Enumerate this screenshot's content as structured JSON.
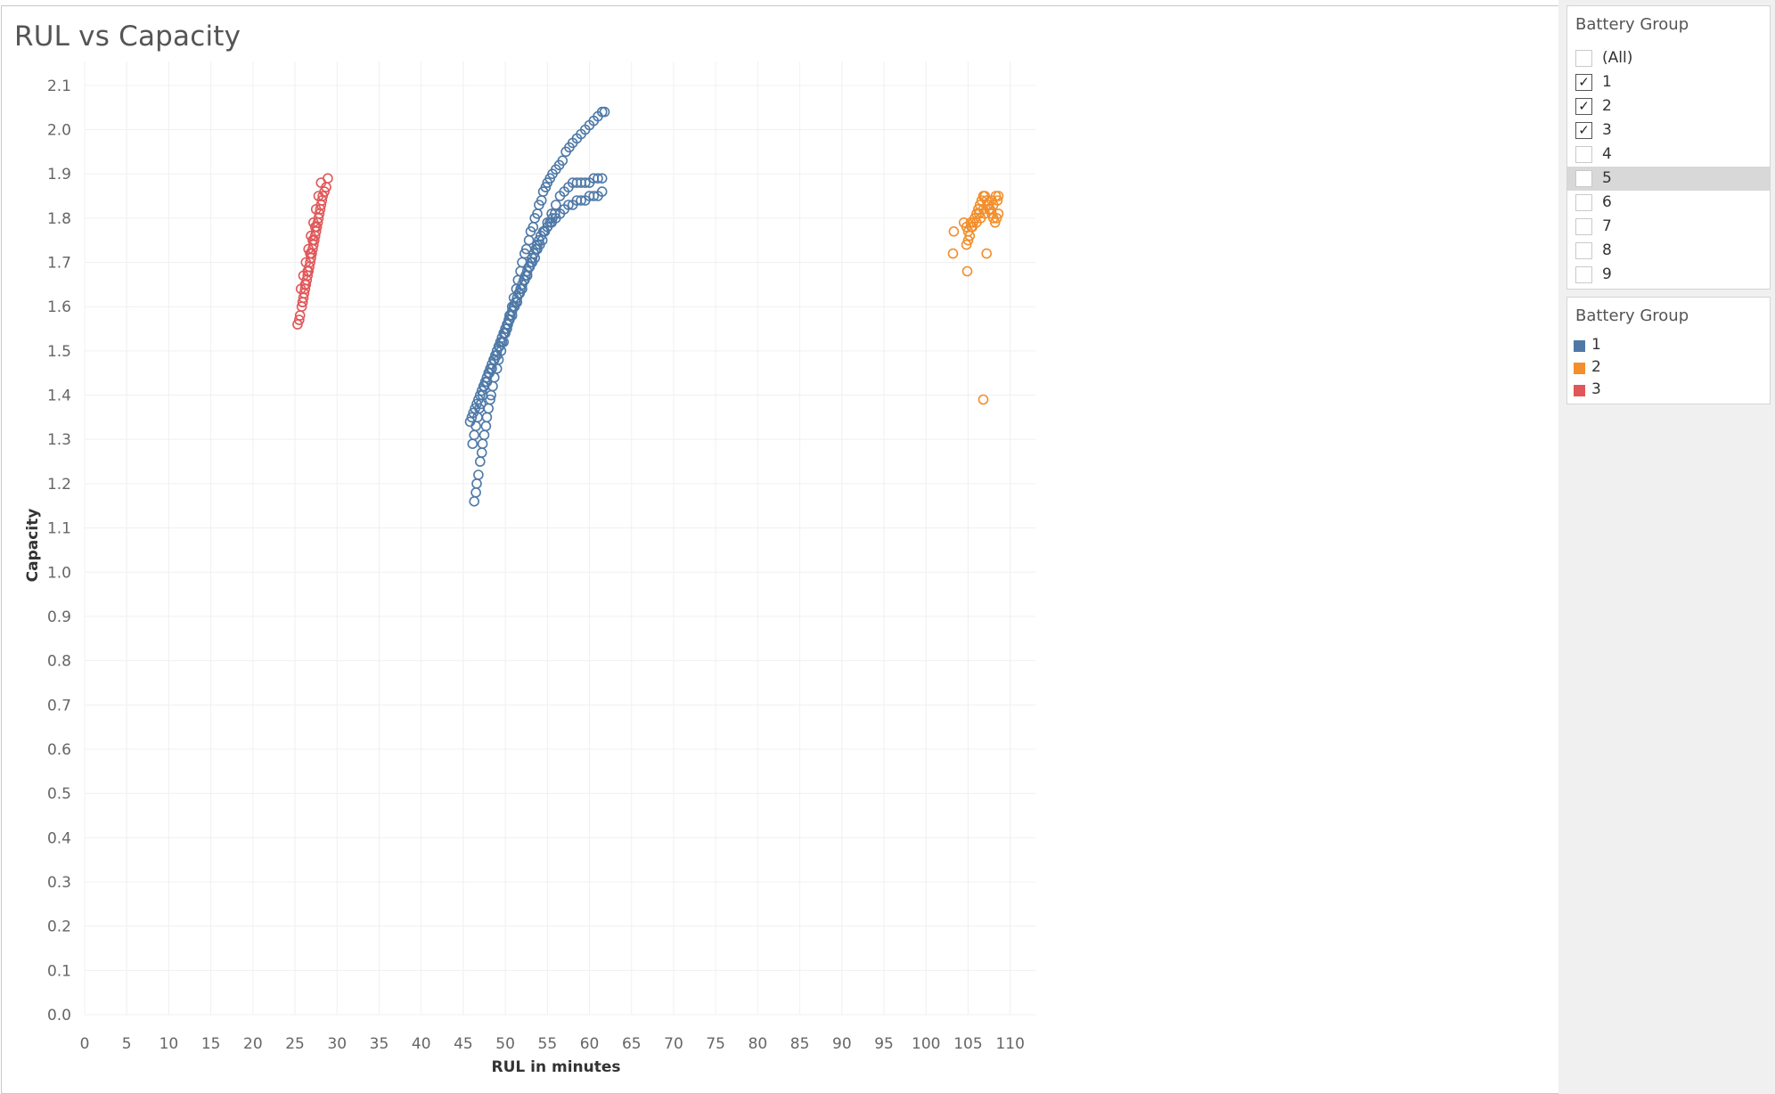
{
  "worksheet": {
    "title": "RUL vs Capacity"
  },
  "filter_card": {
    "title": "Battery Group",
    "items": [
      {
        "label": "(All)",
        "checked": false
      },
      {
        "label": "1",
        "checked": true
      },
      {
        "label": "2",
        "checked": true
      },
      {
        "label": "3",
        "checked": true
      },
      {
        "label": "4",
        "checked": false
      },
      {
        "label": "5",
        "checked": false
      },
      {
        "label": "6",
        "checked": false
      },
      {
        "label": "7",
        "checked": false
      },
      {
        "label": "8",
        "checked": false
      },
      {
        "label": "9",
        "checked": false
      }
    ],
    "hovered_item": "5"
  },
  "legend_card": {
    "title": "Battery Group",
    "items": [
      {
        "label": "1",
        "color": "#4e79a7"
      },
      {
        "label": "2",
        "color": "#f28e2b"
      },
      {
        "label": "3",
        "color": "#e15759"
      }
    ]
  },
  "chart_data": {
    "type": "scatter",
    "title": "RUL vs Capacity",
    "xlabel": "RUL in minutes",
    "ylabel": "Capacity",
    "xlim": [
      0,
      113
    ],
    "ylim": [
      0,
      2.15
    ],
    "x_ticks": [
      0,
      5,
      10,
      15,
      20,
      25,
      30,
      35,
      40,
      45,
      50,
      55,
      60,
      65,
      70,
      75,
      80,
      85,
      90,
      95,
      100,
      105,
      110
    ],
    "y_ticks": [
      0.0,
      0.1,
      0.2,
      0.3,
      0.4,
      0.5,
      0.6,
      0.7,
      0.8,
      0.9,
      1.0,
      1.1,
      1.2,
      1.3,
      1.4,
      1.5,
      1.6,
      1.7,
      1.8,
      1.9,
      2.0,
      2.1
    ],
    "grid": true,
    "marker": "hollow-circle",
    "series": [
      {
        "name": "1",
        "color": "#4e79a7",
        "x": [
          46.3,
          46.5,
          46.6,
          46.8,
          47.0,
          47.2,
          47.3,
          47.5,
          47.7,
          47.8,
          48.0,
          48.2,
          48.3,
          48.5,
          48.7,
          49.0,
          49.2,
          49.5,
          49.8,
          50.0,
          50.3,
          50.5,
          50.8,
          51.0,
          51.3,
          51.5,
          51.8,
          52.0,
          52.3,
          52.5,
          52.8,
          53.0,
          53.3,
          53.5,
          53.8,
          54.0,
          54.3,
          54.5,
          54.8,
          55.0,
          55.3,
          55.6,
          56.0,
          56.4,
          56.8,
          57.2,
          57.6,
          58.0,
          58.5,
          59.0,
          59.5,
          60.0,
          60.5,
          61.0,
          61.5,
          61.8,
          46.0,
          46.4,
          46.8,
          47.2,
          47.6,
          48.0,
          48.4,
          48.8,
          49.2,
          49.6,
          50.0,
          50.4,
          50.8,
          51.2,
          51.6,
          52.0,
          52.4,
          52.8,
          53.2,
          53.6,
          54.0,
          54.5,
          55.0,
          55.5,
          56.0,
          56.5,
          57.0,
          57.5,
          58.0,
          58.5,
          59.0,
          59.5,
          60.0,
          60.5,
          61.0,
          61.5,
          45.8,
          46.2,
          46.6,
          47.0,
          47.4,
          47.8,
          48.2,
          48.6,
          49.0,
          49.4,
          49.8,
          50.2,
          50.6,
          51.0,
          51.4,
          51.8,
          52.2,
          52.6,
          53.0,
          53.4,
          53.8,
          54.2,
          54.6,
          55.0,
          55.5,
          56.0,
          56.5,
          57.0,
          57.5,
          58.0,
          58.5,
          59.0,
          59.5,
          60.0,
          60.5,
          61.0,
          61.5,
          46.1,
          46.3,
          46.5,
          46.7,
          46.9,
          47.1,
          47.3,
          47.5,
          47.8,
          48.1,
          48.4,
          48.7,
          49.0,
          49.3,
          49.6,
          49.9,
          50.2,
          50.5,
          50.8,
          51.1,
          51.4,
          51.7,
          52.0,
          52.3,
          52.6,
          52.9,
          53.2,
          53.5,
          53.8,
          54.1,
          54.4,
          54.7,
          55.0,
          55.3,
          55.6,
          55.9
        ],
        "y": [
          1.16,
          1.18,
          1.2,
          1.22,
          1.25,
          1.27,
          1.29,
          1.31,
          1.33,
          1.35,
          1.37,
          1.39,
          1.4,
          1.42,
          1.44,
          1.46,
          1.48,
          1.5,
          1.52,
          1.54,
          1.56,
          1.58,
          1.6,
          1.62,
          1.64,
          1.66,
          1.68,
          1.7,
          1.72,
          1.73,
          1.75,
          1.77,
          1.78,
          1.8,
          1.81,
          1.83,
          1.84,
          1.86,
          1.87,
          1.88,
          1.89,
          1.9,
          1.91,
          1.92,
          1.93,
          1.95,
          1.96,
          1.97,
          1.98,
          1.99,
          2.0,
          2.01,
          2.02,
          2.03,
          2.04,
          2.04,
          1.35,
          1.37,
          1.39,
          1.41,
          1.43,
          1.45,
          1.47,
          1.49,
          1.51,
          1.53,
          1.55,
          1.57,
          1.59,
          1.61,
          1.63,
          1.65,
          1.67,
          1.69,
          1.71,
          1.73,
          1.75,
          1.77,
          1.79,
          1.81,
          1.83,
          1.85,
          1.86,
          1.87,
          1.88,
          1.88,
          1.88,
          1.88,
          1.88,
          1.89,
          1.89,
          1.89,
          1.34,
          1.36,
          1.38,
          1.4,
          1.42,
          1.44,
          1.46,
          1.48,
          1.5,
          1.52,
          1.54,
          1.56,
          1.58,
          1.6,
          1.62,
          1.64,
          1.66,
          1.68,
          1.7,
          1.72,
          1.74,
          1.76,
          1.77,
          1.78,
          1.79,
          1.8,
          1.81,
          1.82,
          1.83,
          1.83,
          1.84,
          1.84,
          1.84,
          1.85,
          1.85,
          1.85,
          1.86,
          1.29,
          1.31,
          1.33,
          1.35,
          1.37,
          1.38,
          1.4,
          1.42,
          1.43,
          1.45,
          1.46,
          1.48,
          1.49,
          1.51,
          1.52,
          1.54,
          1.55,
          1.57,
          1.58,
          1.6,
          1.61,
          1.63,
          1.64,
          1.66,
          1.67,
          1.69,
          1.7,
          1.71,
          1.73,
          1.74,
          1.75,
          1.77,
          1.78,
          1.79,
          1.8,
          1.81
        ]
      },
      {
        "name": "2",
        "color": "#f28e2b",
        "x": [
          103.2,
          103.3,
          104.5,
          104.8,
          105.0,
          105.2,
          105.4,
          105.6,
          105.8,
          106.0,
          106.2,
          106.4,
          106.6,
          106.8,
          107.0,
          107.2,
          107.4,
          107.6,
          107.8,
          108.0,
          108.2,
          108.4,
          108.6,
          104.8,
          105.3,
          105.8,
          106.3,
          106.8,
          107.3,
          107.8,
          108.3,
          108.6,
          105.0,
          105.5,
          106.0,
          106.5,
          107.0,
          107.5,
          108.0,
          108.5,
          104.9,
          107.2,
          106.8
        ],
        "y": [
          1.72,
          1.77,
          1.79,
          1.74,
          1.75,
          1.76,
          1.78,
          1.79,
          1.8,
          1.81,
          1.82,
          1.83,
          1.84,
          1.85,
          1.85,
          1.84,
          1.83,
          1.82,
          1.81,
          1.8,
          1.79,
          1.8,
          1.81,
          1.78,
          1.79,
          1.8,
          1.81,
          1.82,
          1.83,
          1.84,
          1.85,
          1.85,
          1.77,
          1.78,
          1.79,
          1.8,
          1.81,
          1.82,
          1.83,
          1.84,
          1.68,
          1.72,
          1.39
        ]
      },
      {
        "name": "3",
        "color": "#e15759",
        "x": [
          25.3,
          25.5,
          25.6,
          25.8,
          25.9,
          26.0,
          26.1,
          26.2,
          26.3,
          26.4,
          26.5,
          26.6,
          26.7,
          26.8,
          26.9,
          27.0,
          27.1,
          27.2,
          27.3,
          27.4,
          27.5,
          27.6,
          27.7,
          27.8,
          27.9,
          28.0,
          28.1,
          28.2,
          28.3,
          28.5,
          28.7,
          28.9,
          25.7,
          26.0,
          26.3,
          26.6,
          26.9,
          27.2,
          27.5,
          27.8,
          28.1,
          25.9,
          26.2,
          26.5,
          26.8,
          27.1,
          27.4
        ],
        "y": [
          1.56,
          1.57,
          1.58,
          1.6,
          1.61,
          1.62,
          1.63,
          1.64,
          1.65,
          1.66,
          1.67,
          1.68,
          1.69,
          1.7,
          1.71,
          1.72,
          1.73,
          1.74,
          1.75,
          1.76,
          1.77,
          1.78,
          1.79,
          1.8,
          1.81,
          1.82,
          1.83,
          1.84,
          1.85,
          1.86,
          1.87,
          1.89,
          1.64,
          1.67,
          1.7,
          1.73,
          1.76,
          1.79,
          1.82,
          1.85,
          1.88,
          1.61,
          1.65,
          1.68,
          1.72,
          1.75,
          1.78
        ]
      }
    ]
  }
}
